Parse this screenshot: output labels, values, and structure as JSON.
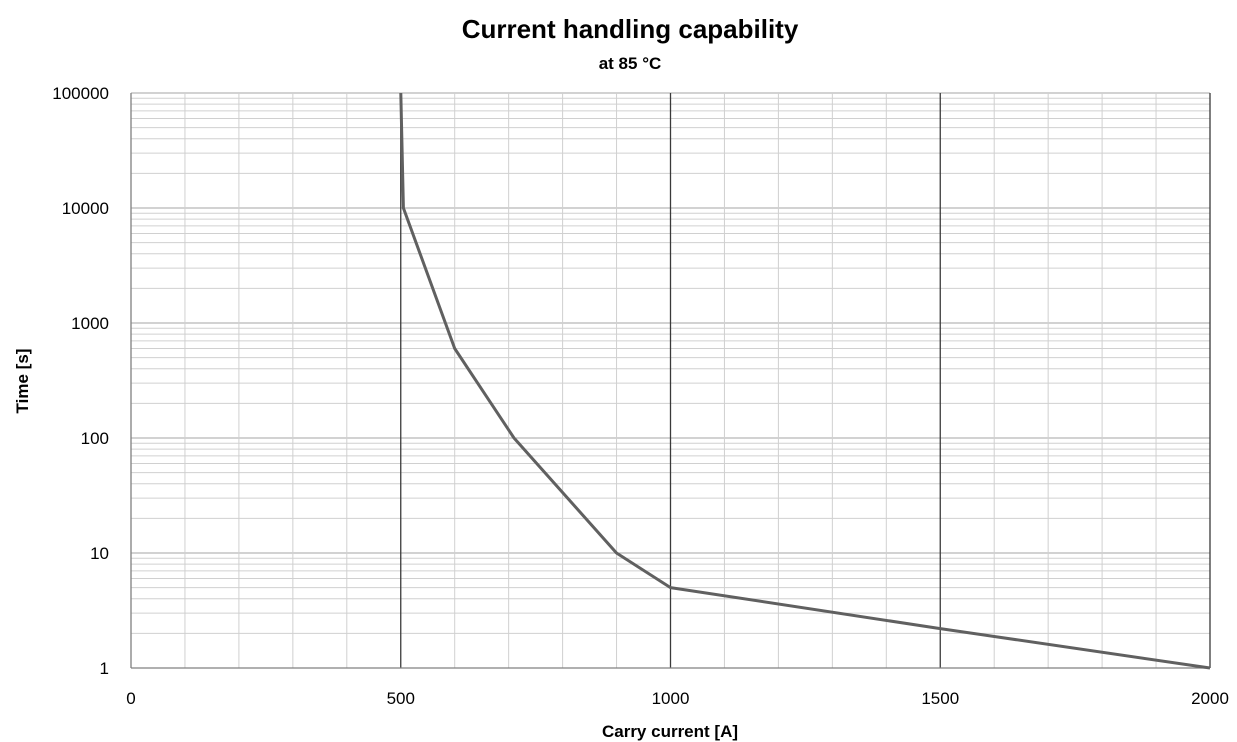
{
  "chart_data": {
    "type": "line",
    "title": "Current handling capability",
    "subtitle": "at 85 °C",
    "xlabel": "Carry current [A]",
    "ylabel": "Time [s]",
    "xlim": [
      0,
      2000
    ],
    "ylim": [
      1,
      100000
    ],
    "y_scale": "log",
    "x_ticks": [
      "0",
      "500",
      "1000",
      "1500",
      "2000"
    ],
    "y_ticks": [
      "1",
      "10",
      "100",
      "1000",
      "10000",
      "100000"
    ],
    "grid": true,
    "legend": "none",
    "series": [
      {
        "color": "#606060",
        "x": [
          500,
          505,
          600,
          710,
          900,
          1000,
          1500,
          2000
        ],
        "y": [
          100000,
          10000,
          600,
          100,
          10,
          5,
          2.2,
          1
        ]
      }
    ]
  }
}
